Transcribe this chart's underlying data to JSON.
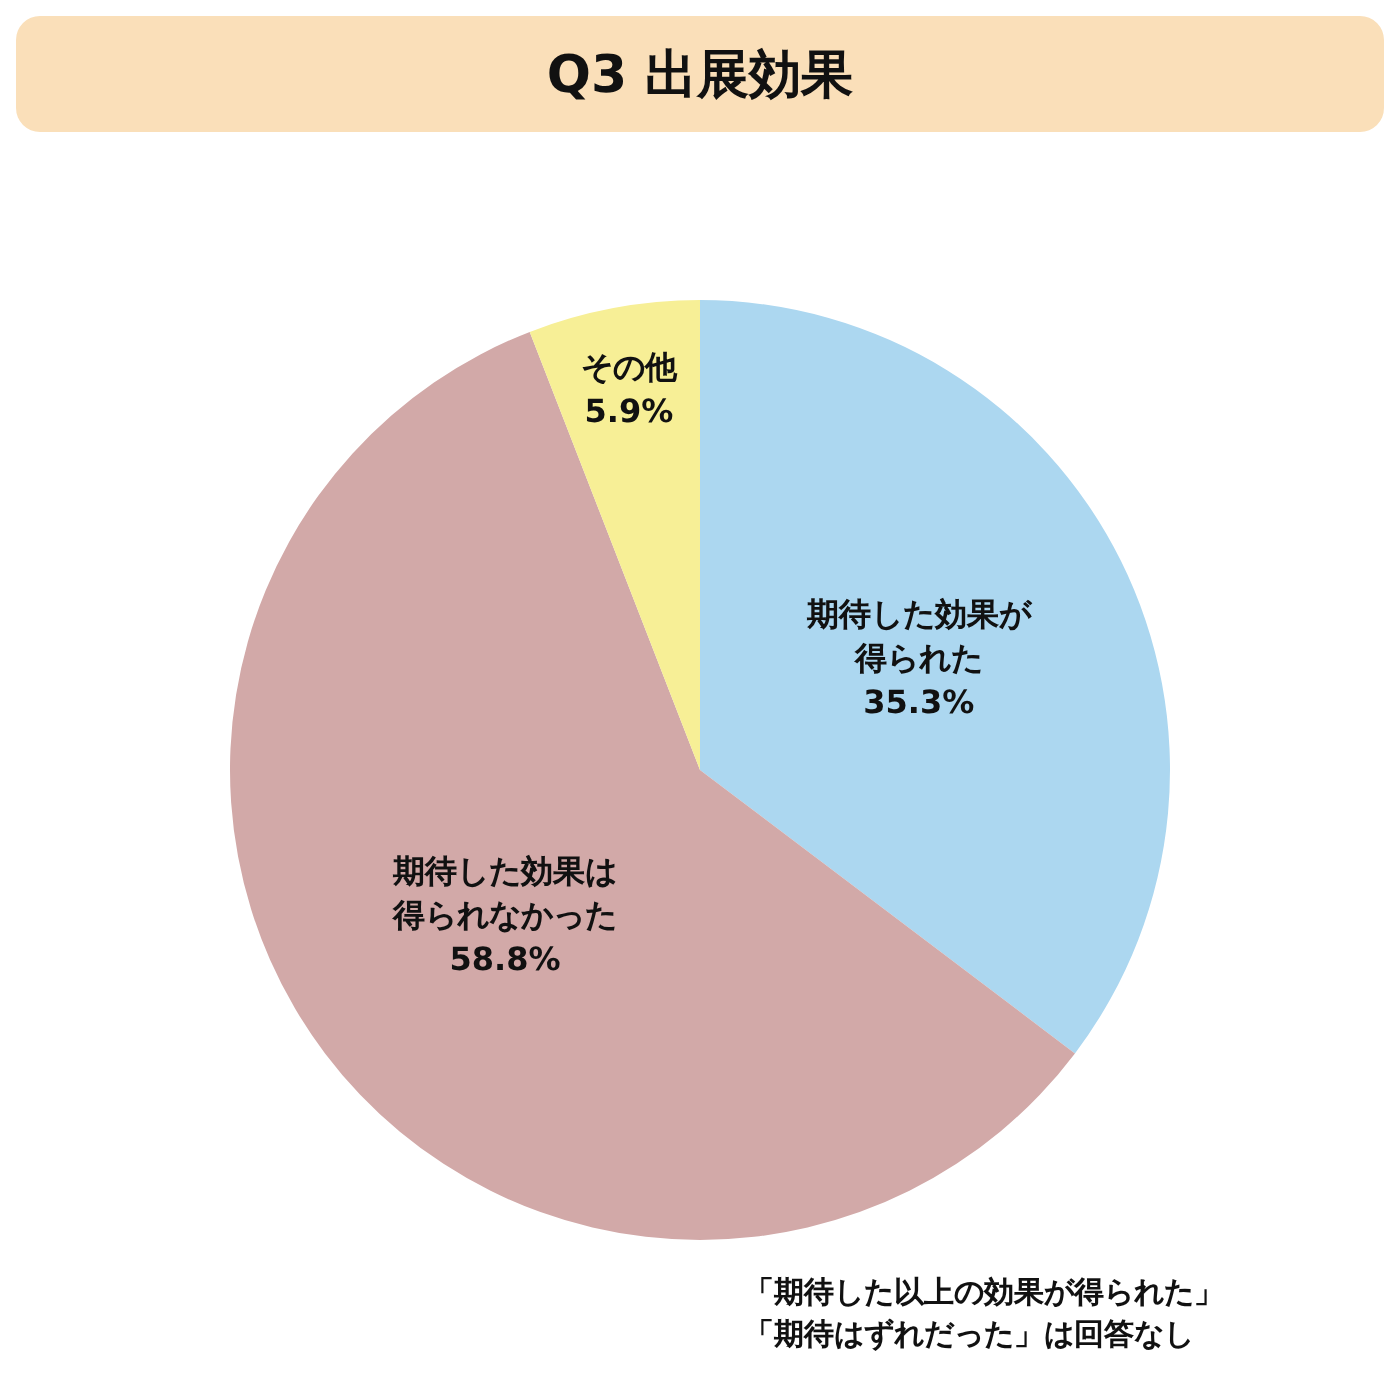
{
  "chart_data": {
    "type": "pie",
    "title": "Q3 出展効果",
    "categories": [
      "期待した効果が得られた",
      "期待した効果は得られなかった",
      "その他"
    ],
    "values": [
      35.3,
      58.8,
      5.9
    ],
    "value_labels": [
      "35.3%",
      "58.8%",
      "5.9%"
    ],
    "colors": [
      "#acd7f0",
      "#d2a9a8",
      "#f7ef96"
    ],
    "legend": false,
    "annotations": [
      "「期待した以上の効果が得られた」",
      "「期待はずれだった」は回答なし"
    ]
  }
}
